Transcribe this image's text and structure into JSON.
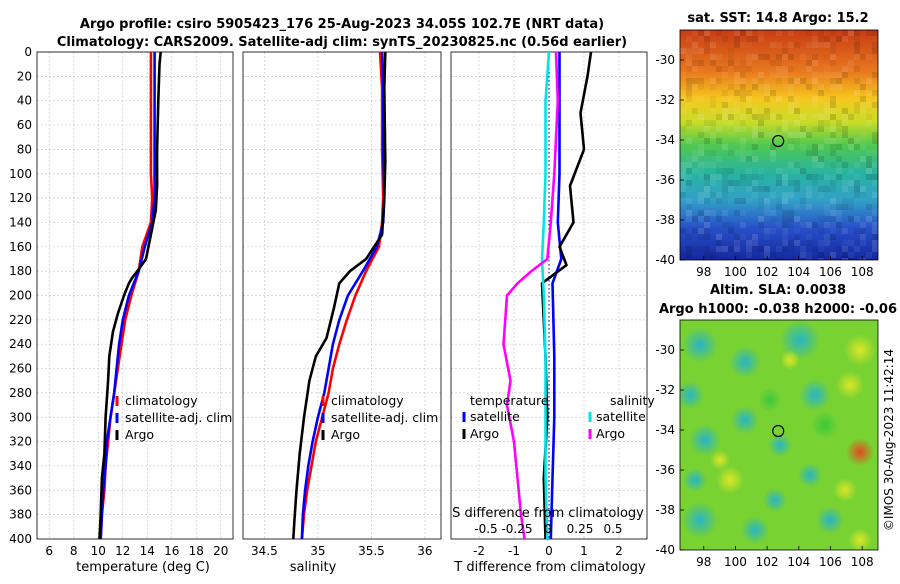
{
  "titles": {
    "line1": "Argo profile: csiro 5905423_176 25-Aug-2023 34.05S 102.7E (NRT data)",
    "line2": "Climatology: CARS2009. Satellite-adj clim: synTS_20230825.nc (0.56d earlier)"
  },
  "colors": {
    "climatology": "#ff0000",
    "satellite": "#0000ff",
    "argo": "#000000",
    "sal_satellite": "#00e5e5",
    "sal_argo": "#ff00ff"
  },
  "chart_data": [
    {
      "type": "line",
      "name": "temperature-profile",
      "xlabel": "temperature (deg C)",
      "ylim": [
        400,
        0
      ],
      "xlim": [
        5,
        21
      ],
      "xticks": [
        6,
        8,
        10,
        12,
        14,
        16,
        18,
        20
      ],
      "yticks": [
        0,
        20,
        40,
        60,
        80,
        100,
        120,
        140,
        160,
        180,
        200,
        220,
        240,
        260,
        280,
        300,
        320,
        340,
        360,
        380,
        400
      ],
      "legend": [
        "climatology",
        "satellite-adj. clim",
        "Argo"
      ],
      "series": [
        {
          "name": "climatology",
          "color": "#ff0000",
          "points": [
            [
              14.3,
              0
            ],
            [
              14.3,
              20
            ],
            [
              14.3,
              60
            ],
            [
              14.3,
              100
            ],
            [
              14.4,
              120
            ],
            [
              14.3,
              140
            ],
            [
              13.6,
              160
            ],
            [
              13.3,
              180
            ],
            [
              12.7,
              200
            ],
            [
              12.2,
              220
            ],
            [
              11.9,
              240
            ],
            [
              11.6,
              260
            ],
            [
              11.3,
              280
            ],
            [
              11.0,
              300
            ],
            [
              10.8,
              320
            ],
            [
              10.6,
              340
            ],
            [
              10.5,
              360
            ],
            [
              10.3,
              380
            ],
            [
              10.2,
              400
            ]
          ]
        },
        {
          "name": "satellite-adj. clim",
          "color": "#0000ff",
          "points": [
            [
              14.6,
              0
            ],
            [
              14.6,
              20
            ],
            [
              14.6,
              60
            ],
            [
              14.6,
              100
            ],
            [
              14.6,
              120
            ],
            [
              14.4,
              140
            ],
            [
              13.8,
              160
            ],
            [
              13.3,
              180
            ],
            [
              12.5,
              200
            ],
            [
              12.0,
              220
            ],
            [
              11.7,
              240
            ],
            [
              11.5,
              260
            ],
            [
              11.3,
              280
            ],
            [
              11.0,
              300
            ],
            [
              10.7,
              320
            ],
            [
              10.6,
              340
            ],
            [
              10.4,
              360
            ],
            [
              10.3,
              380
            ],
            [
              10.2,
              400
            ]
          ]
        },
        {
          "name": "Argo",
          "color": "#000000",
          "points": [
            [
              15.1,
              0
            ],
            [
              15.0,
              10
            ],
            [
              14.9,
              40
            ],
            [
              14.8,
              80
            ],
            [
              14.8,
              110
            ],
            [
              14.7,
              130
            ],
            [
              14.3,
              150
            ],
            [
              13.9,
              170
            ],
            [
              13.2,
              180
            ],
            [
              12.8,
              185
            ],
            [
              12.5,
              190
            ],
            [
              12.1,
              200
            ],
            [
              11.6,
              215
            ],
            [
              11.2,
              230
            ],
            [
              10.9,
              250
            ],
            [
              10.8,
              270
            ],
            [
              10.6,
              300
            ],
            [
              10.5,
              330
            ],
            [
              10.3,
              350
            ],
            [
              10.2,
              380
            ],
            [
              10.1,
              400
            ]
          ]
        }
      ]
    },
    {
      "type": "line",
      "name": "salinity-profile",
      "xlabel": "salinity",
      "ylim": [
        400,
        0
      ],
      "xlim": [
        34.3,
        36.15
      ],
      "xticks": [
        34.5,
        35,
        35.5,
        36
      ],
      "xtick_labels": [
        "34.5",
        "35",
        "35.5",
        "36"
      ],
      "legend": [
        "climatology",
        "satellite-adj. clim",
        "Argo"
      ],
      "series": [
        {
          "name": "climatology",
          "color": "#ff0000",
          "points": [
            [
              35.58,
              0
            ],
            [
              35.6,
              30
            ],
            [
              35.6,
              80
            ],
            [
              35.61,
              120
            ],
            [
              35.6,
              140
            ],
            [
              35.57,
              160
            ],
            [
              35.45,
              180
            ],
            [
              35.35,
              200
            ],
            [
              35.27,
              220
            ],
            [
              35.2,
              240
            ],
            [
              35.14,
              260
            ],
            [
              35.1,
              280
            ],
            [
              35.04,
              300
            ],
            [
              34.98,
              320
            ],
            [
              34.94,
              340
            ],
            [
              34.9,
              360
            ],
            [
              34.87,
              380
            ],
            [
              34.85,
              400
            ]
          ]
        },
        {
          "name": "satellite-adj. clim",
          "color": "#0000ff",
          "points": [
            [
              35.6,
              0
            ],
            [
              35.61,
              30
            ],
            [
              35.61,
              80
            ],
            [
              35.62,
              120
            ],
            [
              35.61,
              140
            ],
            [
              35.55,
              160
            ],
            [
              35.42,
              180
            ],
            [
              35.28,
              200
            ],
            [
              35.2,
              220
            ],
            [
              35.14,
              240
            ],
            [
              35.1,
              260
            ],
            [
              35.06,
              280
            ],
            [
              35.0,
              300
            ],
            [
              34.95,
              320
            ],
            [
              34.91,
              340
            ],
            [
              34.88,
              360
            ],
            [
              34.86,
              380
            ],
            [
              34.85,
              400
            ]
          ]
        },
        {
          "name": "Argo",
          "color": "#000000",
          "points": [
            [
              35.63,
              0
            ],
            [
              35.62,
              30
            ],
            [
              35.63,
              90
            ],
            [
              35.62,
              120
            ],
            [
              35.6,
              150
            ],
            [
              35.45,
              170
            ],
            [
              35.3,
              180
            ],
            [
              35.2,
              190
            ],
            [
              35.15,
              210
            ],
            [
              35.08,
              235
            ],
            [
              34.98,
              250
            ],
            [
              34.92,
              270
            ],
            [
              34.87,
              300
            ],
            [
              34.83,
              330
            ],
            [
              34.8,
              360
            ],
            [
              34.78,
              385
            ],
            [
              34.77,
              400
            ]
          ]
        }
      ]
    },
    {
      "type": "line",
      "name": "difference-profile",
      "xlabel": "T difference from climatology",
      "xlabel_top": "S difference from climatology",
      "ylim": [
        400,
        0
      ],
      "xlim": [
        -2.8,
        2.8
      ],
      "xticks": [
        -2,
        -1,
        0,
        1,
        2
      ],
      "top_ticks": [
        "-0.5",
        "-0.25",
        "0",
        "0.25",
        "0.5"
      ],
      "legend_temperature": {
        "title": "temperature",
        "entries": [
          "satellite",
          "Argo"
        ]
      },
      "legend_salinity": {
        "title": "salinity",
        "entries": [
          "satellite",
          "Argo"
        ]
      },
      "series": [
        {
          "name": "T satellite",
          "color": "#0000ff",
          "points": [
            [
              0.3,
              0
            ],
            [
              0.3,
              40
            ],
            [
              0.3,
              100
            ],
            [
              0.25,
              140
            ],
            [
              0.35,
              170
            ],
            [
              0.1,
              190
            ],
            [
              0.15,
              250
            ],
            [
              0.15,
              300
            ],
            [
              0.1,
              350
            ],
            [
              0.05,
              400
            ]
          ]
        },
        {
          "name": "T Argo",
          "color": "#000000",
          "points": [
            [
              1.2,
              0
            ],
            [
              1.1,
              20
            ],
            [
              0.9,
              50
            ],
            [
              1.0,
              80
            ],
            [
              0.6,
              110
            ],
            [
              0.7,
              140
            ],
            [
              0.3,
              160
            ],
            [
              0.5,
              175
            ],
            [
              -0.2,
              190
            ],
            [
              -0.1,
              250
            ],
            [
              -0.05,
              300
            ],
            [
              -0.15,
              350
            ],
            [
              -0.1,
              400
            ]
          ]
        },
        {
          "name": "S satellite",
          "color": "#00e5e5",
          "points": [
            [
              0.0,
              0
            ],
            [
              -0.1,
              40
            ],
            [
              -0.1,
              100
            ],
            [
              -0.15,
              140
            ],
            [
              -0.2,
              170
            ],
            [
              -0.15,
              200
            ],
            [
              -0.1,
              250
            ],
            [
              -0.1,
              300
            ],
            [
              -0.1,
              350
            ],
            [
              -0.05,
              400
            ]
          ]
        },
        {
          "name": "S Argo",
          "color": "#ff00ff",
          "points": [
            [
              0.2,
              0
            ],
            [
              0.25,
              40
            ],
            [
              0.15,
              100
            ],
            [
              0.05,
              140
            ],
            [
              -0.05,
              170
            ],
            [
              -0.5,
              180
            ],
            [
              -0.9,
              190
            ],
            [
              -1.2,
              200
            ],
            [
              -1.3,
              240
            ],
            [
              -1.1,
              270
            ],
            [
              -1.2,
              290
            ],
            [
              -1.0,
              320
            ],
            [
              -0.9,
              350
            ],
            [
              -0.8,
              380
            ],
            [
              -0.7,
              400
            ]
          ]
        }
      ]
    },
    {
      "type": "heatmap",
      "name": "sst-map",
      "title": "sat. SST: 14.8 Argo: 15.2",
      "xlim": [
        96.5,
        109
      ],
      "ylim": [
        -40,
        -28.5
      ],
      "xticks": [
        98,
        100,
        102,
        104,
        106,
        108
      ],
      "yticks": [
        -30,
        -32,
        -34,
        -36,
        -38,
        -40
      ],
      "marker": [
        102.7,
        -34.05
      ]
    },
    {
      "type": "heatmap",
      "name": "sla-map",
      "title_line1": "Altim. SLA: 0.0038",
      "title_line2": "Argo h1000: -0.038 h2000: -0.06",
      "xlim": [
        96.5,
        109
      ],
      "ylim": [
        -40,
        -28.5
      ],
      "xticks": [
        98,
        100,
        102,
        104,
        106,
        108
      ],
      "yticks": [
        -30,
        -32,
        -34,
        -36,
        -38,
        -40
      ],
      "marker": [
        102.7,
        -34.05
      ]
    }
  ],
  "credit": "©IMOS 30-Aug-2023 11:42:14"
}
